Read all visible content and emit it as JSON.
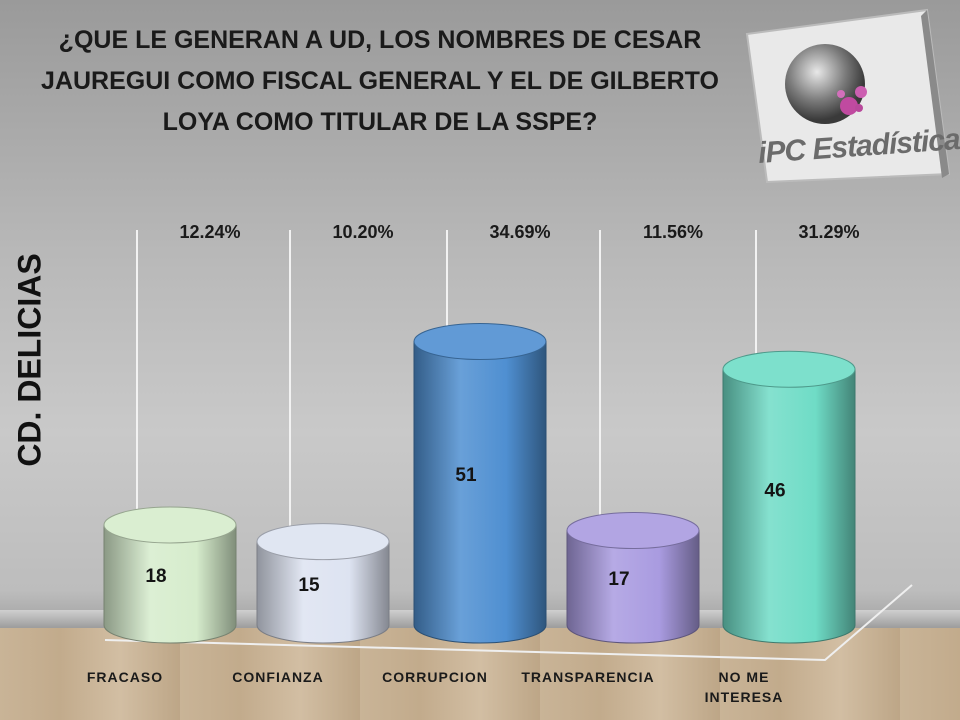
{
  "title": "¿QUE LE GENERAN A UD, LOS NOMBRES DE CESAR\nJAUREGUI COMO FISCAL GENERAL Y EL DE GILBERTO\nLOYA COMO TITULAR DE LA SSPE?",
  "logo_text": "iPC Estadística",
  "chart_data": {
    "type": "bar",
    "title": "¿QUE LE GENERAN A UD, LOS NOMBRES DE CESAR JAUREGUI COMO FISCAL GENERAL Y EL DE GILBERTO LOYA COMO TITULAR DE LA SSPE?",
    "ylabel": "CD. DELICIAS",
    "xlabel": "",
    "categories": [
      "FRACASO",
      "CONFIANZA",
      "CORRUPCION",
      "TRANSPARENCIA",
      "NO ME INTERESA"
    ],
    "values": [
      18,
      15,
      51,
      17,
      46
    ],
    "percent_labels": [
      "12.24%",
      "10.20%",
      "34.69%",
      "11.56%",
      "31.29%"
    ],
    "colors": [
      "#d6eccc",
      "#dde3f1",
      "#4f8fd1",
      "#a99be0",
      "#6fdcc6"
    ],
    "ylim": [
      0,
      60
    ],
    "grid": false
  }
}
